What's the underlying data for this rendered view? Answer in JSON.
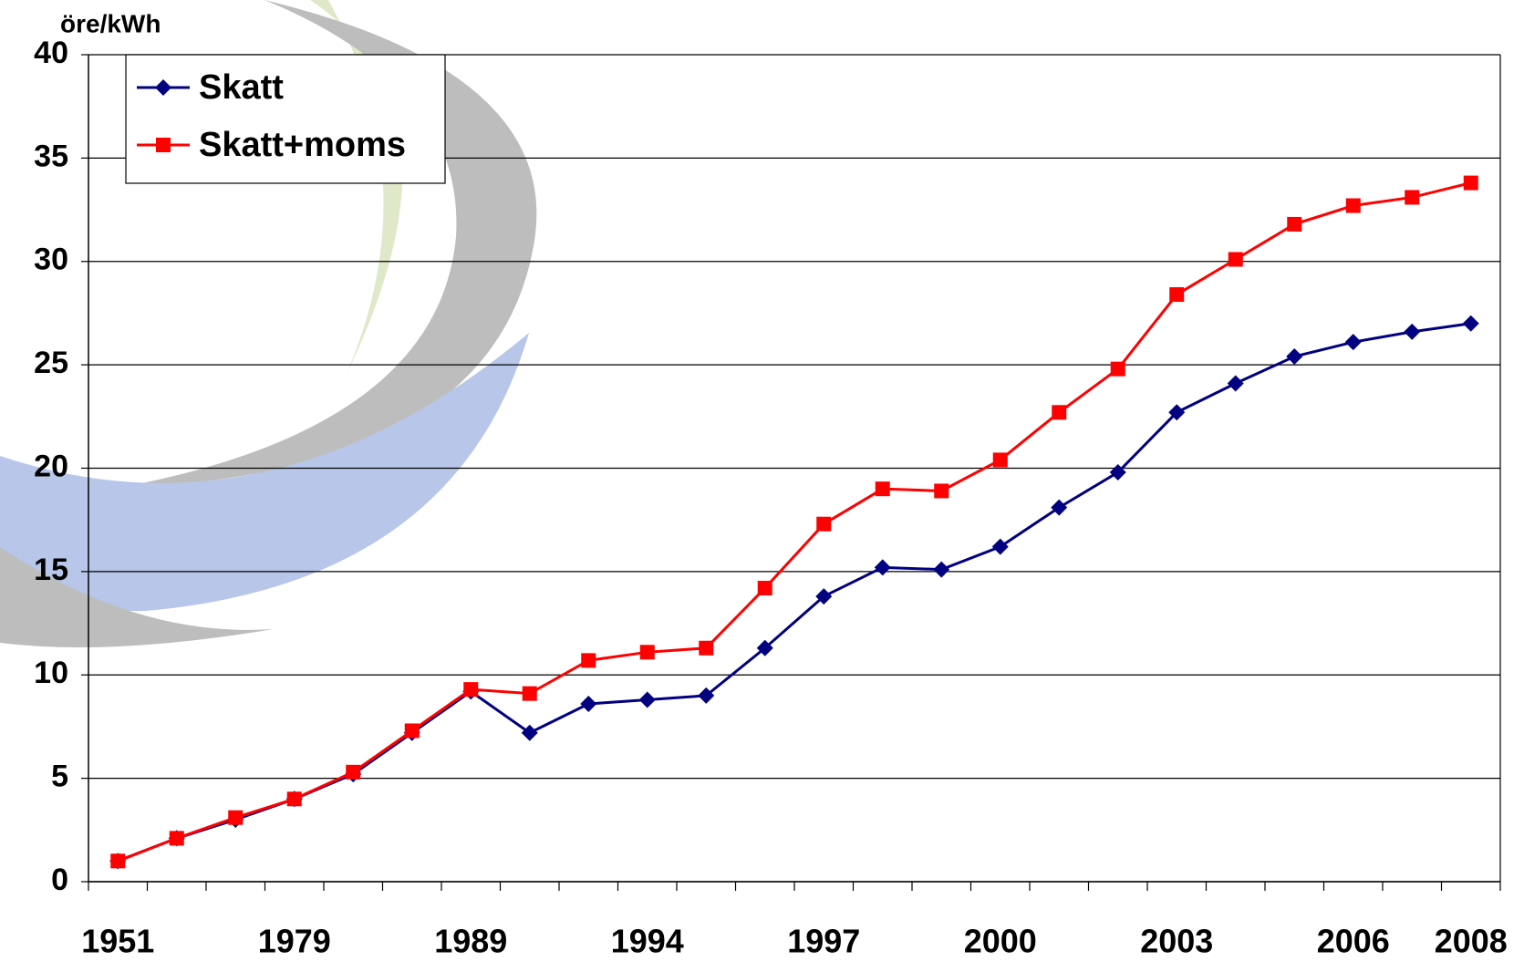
{
  "chart_data": {
    "type": "line",
    "y_label": "öre/kWh",
    "categories": [
      "1951",
      null,
      null,
      "1979",
      null,
      null,
      "1989",
      null,
      null,
      "1994",
      null,
      null,
      "1997",
      null,
      null,
      "2000",
      null,
      null,
      "2003",
      null,
      null,
      "2006",
      null,
      "2008"
    ],
    "series": [
      {
        "name": "Skatt",
        "color": "#000080",
        "marker": "diamond",
        "values": [
          1.0,
          2.1,
          3.0,
          4.0,
          5.2,
          7.2,
          9.2,
          7.2,
          8.6,
          8.8,
          9.0,
          11.3,
          13.8,
          15.2,
          15.1,
          16.2,
          18.1,
          19.8,
          22.7,
          24.1,
          25.4,
          26.1,
          26.6,
          27.0
        ]
      },
      {
        "name": "Skatt+moms",
        "color": "#ff0000",
        "marker": "square",
        "values": [
          1.0,
          2.1,
          3.1,
          4.0,
          5.3,
          7.3,
          9.3,
          9.1,
          10.7,
          11.1,
          11.3,
          14.2,
          17.3,
          19.0,
          18.9,
          20.4,
          22.7,
          24.8,
          28.4,
          30.1,
          31.8,
          32.7,
          33.1,
          33.8
        ]
      }
    ],
    "ylim": [
      0,
      40
    ],
    "yticks": [
      0,
      5,
      10,
      15,
      20,
      25,
      30,
      35,
      40
    ],
    "grid": true,
    "legend": "upper left"
  }
}
